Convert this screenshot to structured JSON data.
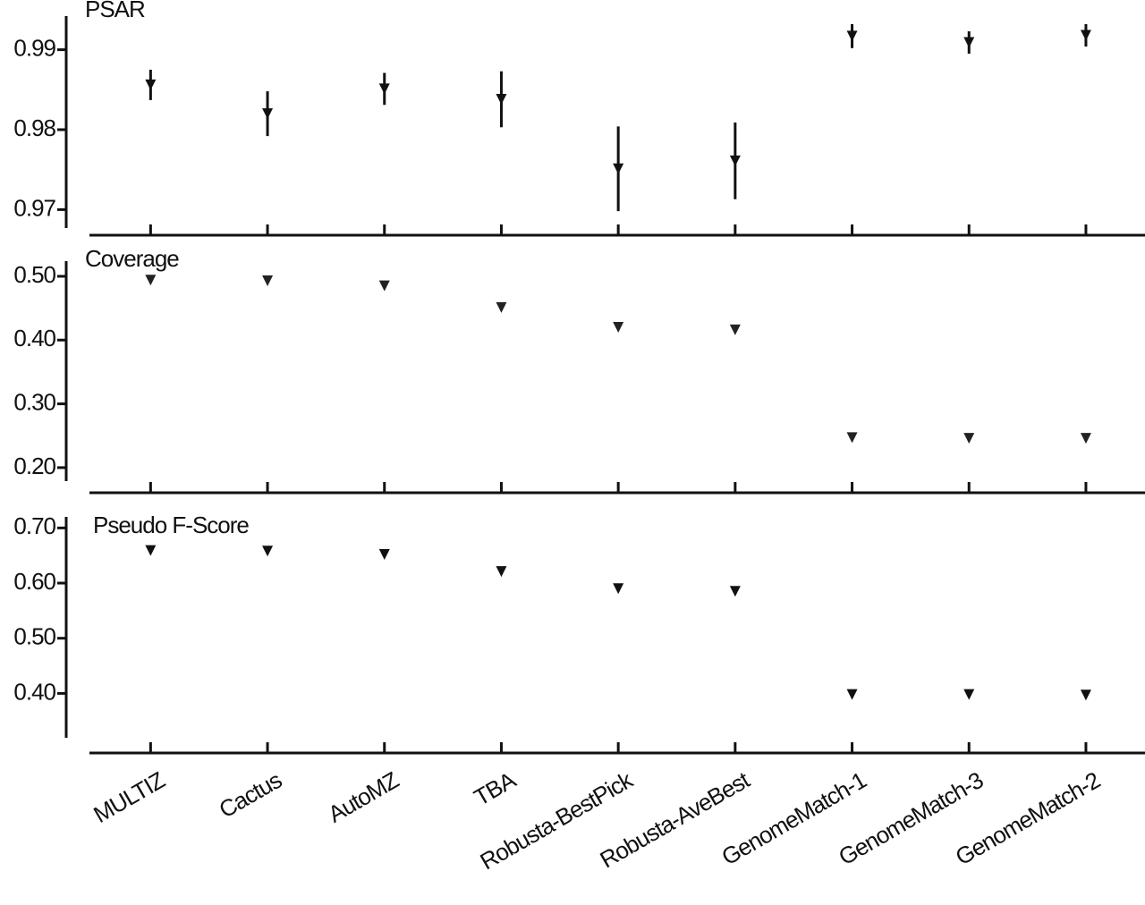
{
  "chart_data": [
    {
      "type": "point",
      "title": "PSAR",
      "color": "#111111",
      "values": [
        0.9856,
        0.982,
        0.9851,
        0.9838,
        0.9751,
        0.9761,
        0.9917,
        0.9909,
        0.9918
      ],
      "errors": [
        0.0019,
        0.0028,
        0.002,
        0.0035,
        0.0053,
        0.0048,
        0.0015,
        0.0014,
        0.0014
      ],
      "ylim": [
        0.9668,
        0.9951
      ],
      "yticks": [
        0.97,
        0.98,
        0.99
      ]
    },
    {
      "type": "point",
      "title": "Coverage",
      "color": "#222222",
      "values": [
        0.494,
        0.493,
        0.485,
        0.451,
        0.42,
        0.416,
        0.247,
        0.246,
        0.246
      ],
      "ylim": [
        0.1606,
        0.535
      ],
      "yticks": [
        {
          "value": 0.2,
          "label": "0.20"
        },
        {
          "value": 0.3,
          "label": "0.30"
        },
        {
          "value": 0.4,
          "label": "0.40"
        },
        {
          "value": 0.5,
          "label": "0.50"
        }
      ]
    },
    {
      "type": "point",
      "title": "Pseudo F-Score",
      "color": "#111111",
      "categories": [
        "MULTIZ",
        "Cactus",
        "AutoMZ",
        "TBA",
        "Robusta-BestPick",
        "Robusta-AveBest",
        "GenomeMatch-1",
        "GenomeMatch-3",
        "GenomeMatch-2"
      ],
      "values": [
        0.659,
        0.658,
        0.652,
        0.621,
        0.59,
        0.585,
        0.398,
        0.398,
        0.397
      ],
      "ylim": [
        0.292,
        0.733
      ],
      "yticks": [
        {
          "value": 0.4,
          "label": "0.40"
        },
        {
          "value": 0.5,
          "label": "0.50"
        },
        {
          "value": 0.6,
          "label": "0.60"
        },
        {
          "value": 0.7,
          "label": "0.70"
        }
      ]
    }
  ]
}
